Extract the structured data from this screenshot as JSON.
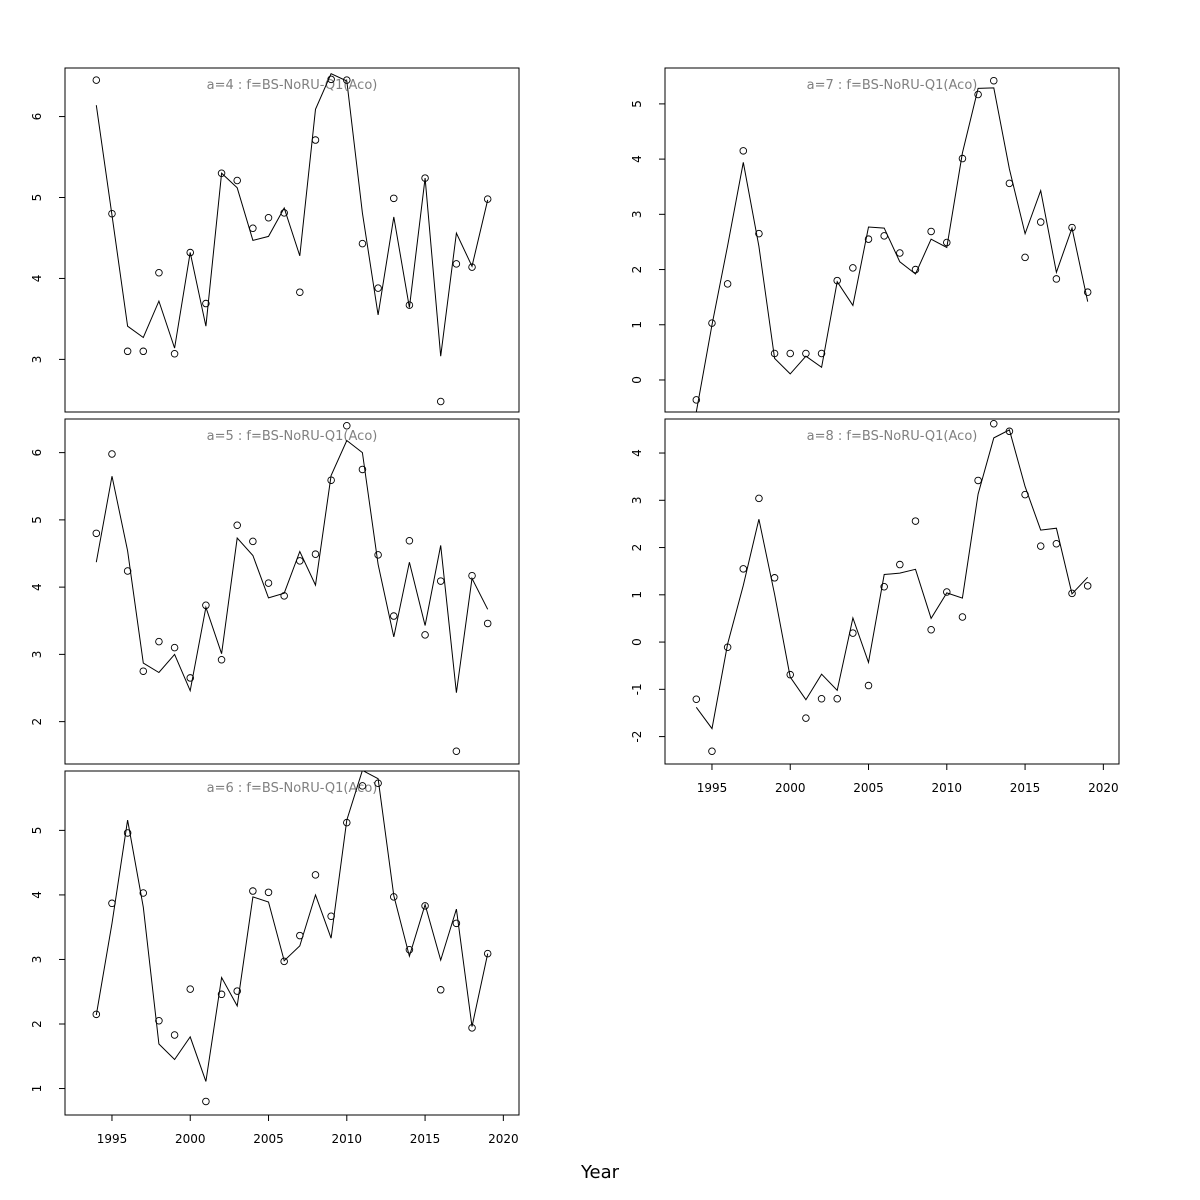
{
  "chart_data": {
    "xlabel": "Year",
    "x_ticks": [
      1995,
      2000,
      2005,
      2010,
      2015,
      2020
    ],
    "years": [
      1994,
      1995,
      1996,
      1997,
      1998,
      1999,
      2000,
      2001,
      2002,
      2003,
      2004,
      2005,
      2006,
      2007,
      2008,
      2009,
      2010,
      2011,
      2012,
      2013,
      2014,
      2015,
      2016,
      2017,
      2018,
      2019
    ],
    "panels": [
      {
        "id": "a4",
        "type": "scatter",
        "title": "a=4  :  f=BS-NoRU-Q1(Aco)",
        "xlim": [
          1992,
          2021
        ],
        "ylim": [
          2.35,
          6.6
        ],
        "y_ticks": [
          3,
          4,
          5,
          6
        ],
        "show_x_axis": false,
        "observed": [
          6.45,
          4.8,
          3.1,
          3.1,
          4.07,
          3.07,
          4.32,
          3.69,
          5.3,
          5.21,
          4.62,
          4.75,
          4.81,
          3.83,
          5.71,
          6.46,
          6.45,
          4.43,
          3.88,
          4.99,
          3.67,
          5.24,
          2.48,
          4.18,
          4.14,
          4.98
        ],
        "fitted": [
          6.14,
          4.78,
          3.41,
          3.27,
          3.72,
          3.14,
          4.32,
          3.41,
          5.3,
          5.12,
          4.47,
          4.52,
          4.87,
          4.28,
          6.09,
          6.53,
          6.44,
          4.81,
          3.55,
          4.76,
          3.64,
          5.24,
          3.04,
          4.56,
          4.15,
          4.97
        ]
      },
      {
        "id": "a5",
        "type": "scatter",
        "title": "a=5  :  f=BS-NoRU-Q1(Aco)",
        "xlim": [
          1992,
          2021
        ],
        "ylim": [
          1.37,
          6.5
        ],
        "y_ticks": [
          2,
          3,
          4,
          5,
          6
        ],
        "show_x_axis": false,
        "observed": [
          4.8,
          5.98,
          4.24,
          2.75,
          3.19,
          3.1,
          2.65,
          3.73,
          2.92,
          4.92,
          4.68,
          4.06,
          3.87,
          4.39,
          4.49,
          5.59,
          6.4,
          5.75,
          4.48,
          3.57,
          4.69,
          3.29,
          4.09,
          1.56,
          4.17,
          3.46
        ],
        "fitted": [
          4.37,
          5.65,
          4.54,
          2.87,
          2.73,
          3.0,
          2.46,
          3.7,
          3.01,
          4.73,
          4.47,
          3.84,
          3.91,
          4.53,
          4.03,
          5.66,
          6.18,
          6.0,
          4.34,
          3.26,
          4.37,
          3.43,
          4.62,
          2.43,
          4.13,
          3.67
        ]
      },
      {
        "id": "a6",
        "type": "scatter",
        "title": "a=6  :  f=BS-NoRU-Q1(Aco)",
        "xlim": [
          1992,
          2021
        ],
        "ylim": [
          0.59,
          5.92
        ],
        "y_ticks": [
          1,
          2,
          3,
          4,
          5
        ],
        "show_x_axis": true,
        "observed": [
          2.15,
          3.87,
          4.96,
          4.03,
          2.05,
          1.83,
          2.54,
          0.8,
          2.46,
          2.51,
          4.06,
          4.04,
          2.97,
          3.37,
          4.31,
          3.67,
          5.12,
          5.69,
          5.73,
          3.97,
          3.15,
          3.83,
          2.53,
          3.56,
          1.94,
          3.09
        ],
        "fitted": [
          2.14,
          3.56,
          5.16,
          3.81,
          1.69,
          1.45,
          1.8,
          1.11,
          2.72,
          2.28,
          3.97,
          3.89,
          2.98,
          3.21,
          4.0,
          3.33,
          5.16,
          5.93,
          5.8,
          3.99,
          3.05,
          3.85,
          2.99,
          3.78,
          1.96,
          3.09
        ]
      },
      {
        "id": "a7",
        "type": "scatter",
        "title": "a=7  :  f=BS-NoRU-Q1(Aco)",
        "xlim": [
          1992,
          2021
        ],
        "ylim": [
          -0.58,
          5.65
        ],
        "y_ticks": [
          0,
          1,
          2,
          3,
          4,
          5
        ],
        "show_x_axis": false,
        "observed": [
          -0.36,
          1.03,
          1.74,
          4.15,
          2.65,
          0.48,
          0.48,
          0.48,
          0.48,
          1.8,
          2.03,
          2.55,
          2.61,
          2.3,
          2.0,
          2.69,
          2.49,
          4.01,
          5.17,
          5.42,
          3.56,
          2.22,
          2.86,
          1.83,
          2.76,
          1.59
        ],
        "fitted": [
          -0.58,
          1.0,
          2.43,
          3.94,
          2.42,
          0.39,
          0.11,
          0.43,
          0.23,
          1.78,
          1.35,
          2.77,
          2.75,
          2.14,
          1.92,
          2.55,
          2.4,
          4.11,
          5.28,
          5.29,
          3.82,
          2.65,
          3.43,
          1.95,
          2.75,
          1.42
        ]
      },
      {
        "id": "a8",
        "type": "scatter",
        "title": "a=8  :  f=BS-NoRU-Q1(Aco)",
        "xlim": [
          1992,
          2021
        ],
        "ylim": [
          -2.58,
          4.72
        ],
        "y_ticks": [
          -2,
          -1,
          0,
          1,
          2,
          3,
          4
        ],
        "show_x_axis": true,
        "observed": [
          -1.21,
          -2.31,
          -0.11,
          1.55,
          3.04,
          1.36,
          -0.69,
          -1.61,
          -1.2,
          -1.2,
          0.19,
          -0.92,
          1.17,
          1.64,
          2.56,
          0.26,
          1.06,
          0.53,
          3.42,
          4.62,
          4.46,
          3.12,
          2.03,
          2.08,
          1.03,
          1.19
        ],
        "fitted": [
          -1.38,
          -1.83,
          -0.04,
          1.2,
          2.6,
          1.01,
          -0.74,
          -1.22,
          -0.68,
          -1.02,
          0.51,
          -0.43,
          1.43,
          1.46,
          1.54,
          0.5,
          1.04,
          0.93,
          3.13,
          4.32,
          4.49,
          3.29,
          2.37,
          2.41,
          1.02,
          1.37
        ]
      }
    ]
  }
}
